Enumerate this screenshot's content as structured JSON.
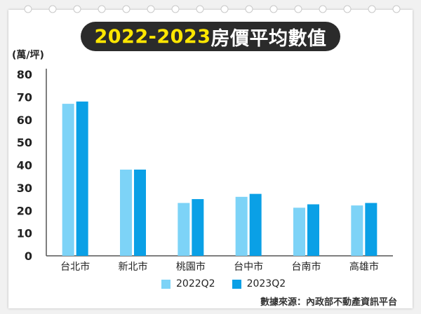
{
  "title": {
    "years": "2022-2023",
    "rest": "房價平均數值"
  },
  "unit_label": "(萬/坪)",
  "source": "數據來源：內政部不動產資訊平台",
  "colors": {
    "series_2022": "#7dd3f7",
    "series_2023": "#0aa0e6",
    "axis": "#555555",
    "text": "#222222"
  },
  "chart_data": {
    "type": "bar",
    "categories": [
      "台北市",
      "新北市",
      "桃園市",
      "台中市",
      "台南市",
      "高雄市"
    ],
    "series": [
      {
        "name": "2022Q2",
        "values": [
          67,
          38,
          23.3,
          26,
          21.2,
          22.2
        ]
      },
      {
        "name": "2023Q2",
        "values": [
          68,
          38,
          25,
          27.3,
          22.7,
          23.3
        ]
      }
    ],
    "yticks": [
      "0",
      "10",
      "20",
      "30",
      "40",
      "50",
      "60",
      "70",
      "80"
    ],
    "ylim": [
      0,
      80
    ],
    "ylabel": "(萬/坪)",
    "grid": false,
    "legend": "bottom"
  }
}
